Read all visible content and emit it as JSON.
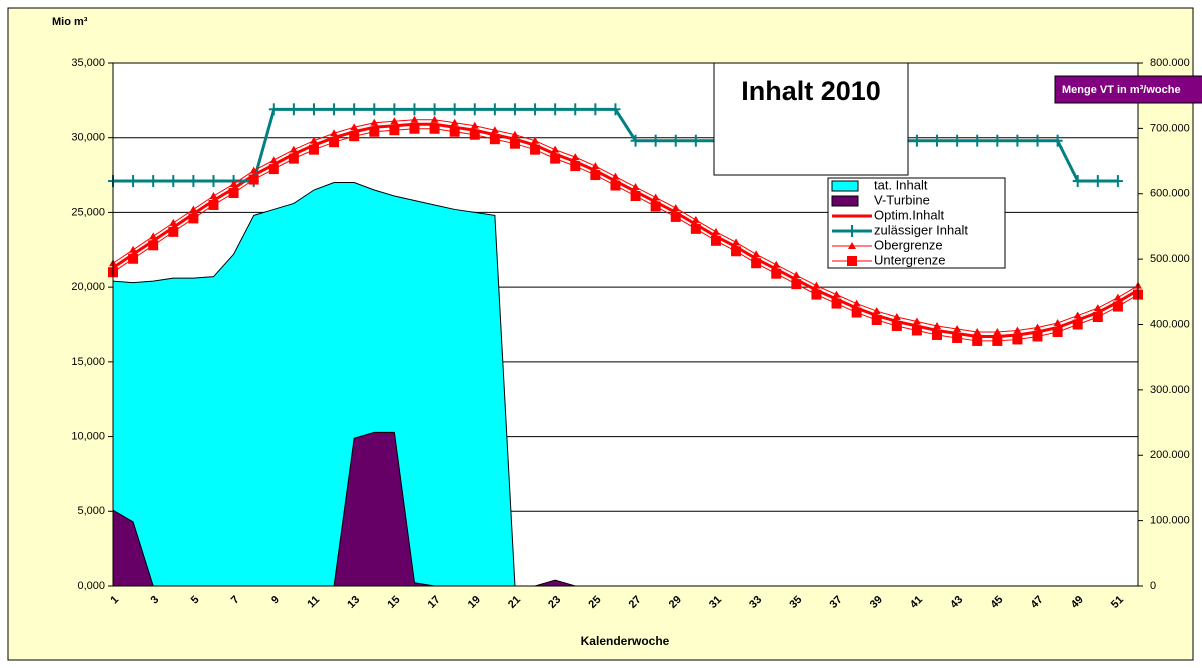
{
  "chart_data": {
    "type": "line",
    "title": "Inhalt 2010",
    "y_label": "Mio m³",
    "y2_label": "Menge VT in m³/woche",
    "x_label": "Kalenderwoche",
    "categories": [
      "1",
      null,
      "3",
      null,
      "5",
      null,
      "7",
      null,
      "9",
      null,
      "11",
      null,
      "13",
      null,
      "15",
      null,
      "17",
      null,
      "19",
      null,
      "21",
      null,
      "23",
      null,
      "25",
      null,
      "27",
      null,
      "29",
      null,
      "31",
      null,
      "33",
      null,
      "35",
      null,
      "37",
      null,
      "39",
      null,
      "41",
      null,
      "43",
      null,
      "45",
      null,
      "47",
      null,
      "49",
      null,
      "51",
      null
    ],
    "ylim": [
      0,
      35
    ],
    "yticks": [
      {
        "value": 0,
        "label": "0,000"
      },
      {
        "value": 5,
        "label": "5,000"
      },
      {
        "value": 10,
        "label": "10,000"
      },
      {
        "value": 15,
        "label": "15,000"
      },
      {
        "value": 20,
        "label": "20,000"
      },
      {
        "value": 25,
        "label": "25,000"
      },
      {
        "value": 30,
        "label": "30,000"
      },
      {
        "value": 35,
        "label": "35,000"
      }
    ],
    "y2lim": [
      0,
      800000
    ],
    "y2ticks": [
      0,
      {
        "value": 100000,
        "label": "100.000"
      },
      {
        "value": 200000,
        "label": "200.000"
      },
      {
        "value": 300000,
        "label": "300.000"
      },
      {
        "value": 400000,
        "label": "400.000"
      },
      {
        "value": 500000,
        "label": "500.000"
      },
      {
        "value": 600000,
        "label": "600.000"
      },
      {
        "value": 700000,
        "label": "700.000"
      },
      {
        "value": 800000,
        "label": "800.000"
      }
    ],
    "grid": true,
    "legend": "top-right",
    "series": [
      {
        "name": "tat. Inhalt",
        "kind": "area",
        "color": "#00ffff",
        "values": [
          20.4,
          20.3,
          20.4,
          20.6,
          20.6,
          20.7,
          22.2,
          24.8,
          25.2,
          25.6,
          26.5,
          27.0,
          27.0,
          26.5,
          26.1,
          25.8,
          25.5,
          25.2,
          25.0,
          24.8,
          0,
          0,
          0,
          0,
          0,
          0,
          0,
          0,
          0,
          0,
          0,
          0,
          0,
          0,
          0,
          0,
          0,
          0,
          0,
          0,
          0,
          0,
          0,
          0,
          0,
          0,
          0,
          0,
          0,
          0,
          0,
          0
        ]
      },
      {
        "name": "V-Turbine",
        "kind": "area",
        "axis": "y2",
        "color": "#660066",
        "values": [
          116000,
          98000,
          0,
          0,
          0,
          0,
          0,
          0,
          0,
          0,
          0,
          0,
          226000,
          235000,
          235000,
          5000,
          0,
          0,
          0,
          0,
          0,
          0,
          9000,
          0,
          0,
          0,
          0,
          0,
          0,
          0,
          0,
          0,
          0,
          0,
          0,
          0,
          0,
          0,
          0,
          0,
          0,
          0,
          0,
          0,
          0,
          0,
          0,
          0,
          0,
          0,
          0,
          0
        ]
      },
      {
        "name": "Optim.Inhalt",
        "kind": "line",
        "color": "#ff0000",
        "width": 3,
        "marker": "none",
        "values": [
          21.3,
          22.2,
          23.1,
          24.0,
          24.9,
          25.8,
          26.6,
          27.5,
          28.2,
          28.9,
          29.5,
          30.0,
          30.4,
          30.7,
          30.8,
          30.9,
          30.9,
          30.7,
          30.5,
          30.2,
          29.9,
          29.5,
          28.9,
          28.4,
          27.8,
          27.1,
          26.4,
          25.7,
          25.0,
          24.2,
          23.4,
          22.7,
          21.9,
          21.2,
          20.5,
          19.8,
          19.2,
          18.6,
          18.1,
          17.7,
          17.4,
          17.1,
          16.9,
          16.7,
          16.7,
          16.8,
          17.0,
          17.3,
          17.8,
          18.3,
          19.0,
          19.8
        ]
      },
      {
        "name": "zulässiger Inhalt",
        "kind": "line",
        "color": "#008080",
        "width": 3,
        "marker": "plus",
        "values": [
          27.1,
          27.1,
          27.1,
          27.1,
          27.1,
          27.1,
          27.1,
          27.1,
          31.9,
          31.9,
          31.9,
          31.9,
          31.9,
          31.9,
          31.9,
          31.9,
          31.9,
          31.9,
          31.9,
          31.9,
          31.9,
          31.9,
          31.9,
          31.9,
          31.9,
          31.9,
          29.8,
          29.8,
          29.8,
          29.8,
          29.8,
          29.8,
          29.8,
          29.8,
          29.8,
          29.8,
          29.8,
          29.8,
          29.8,
          29.8,
          29.8,
          29.8,
          29.8,
          29.8,
          29.8,
          29.8,
          29.8,
          29.8,
          27.1,
          27.1,
          27.1,
          null
        ]
      },
      {
        "name": "Obergrenze",
        "kind": "line",
        "color": "#ff0000",
        "width": 1,
        "marker": "triangle",
        "values": [
          21.6,
          22.5,
          23.4,
          24.3,
          25.2,
          26.1,
          26.9,
          27.8,
          28.5,
          29.2,
          29.8,
          30.3,
          30.7,
          31.0,
          31.1,
          31.2,
          31.2,
          31.0,
          30.8,
          30.5,
          30.2,
          29.8,
          29.2,
          28.7,
          28.1,
          27.4,
          26.7,
          26.0,
          25.3,
          24.5,
          23.7,
          23.0,
          22.2,
          21.5,
          20.8,
          20.1,
          19.5,
          18.9,
          18.4,
          18.0,
          17.7,
          17.4,
          17.2,
          17.0,
          17.0,
          17.1,
          17.3,
          17.6,
          18.1,
          18.6,
          19.3,
          20.1
        ]
      },
      {
        "name": "Untergrenze",
        "kind": "line",
        "color": "#ff0000",
        "width": 1,
        "marker": "square",
        "values": [
          21.0,
          21.9,
          22.8,
          23.7,
          24.6,
          25.5,
          26.3,
          27.2,
          27.9,
          28.6,
          29.2,
          29.7,
          30.1,
          30.4,
          30.5,
          30.6,
          30.6,
          30.4,
          30.2,
          29.9,
          29.6,
          29.2,
          28.6,
          28.1,
          27.5,
          26.8,
          26.1,
          25.4,
          24.7,
          23.9,
          23.1,
          22.4,
          21.6,
          20.9,
          20.2,
          19.5,
          18.9,
          18.3,
          17.8,
          17.4,
          17.1,
          16.8,
          16.6,
          16.4,
          16.4,
          16.5,
          16.7,
          17.0,
          17.5,
          18.0,
          18.7,
          19.5
        ]
      }
    ]
  }
}
